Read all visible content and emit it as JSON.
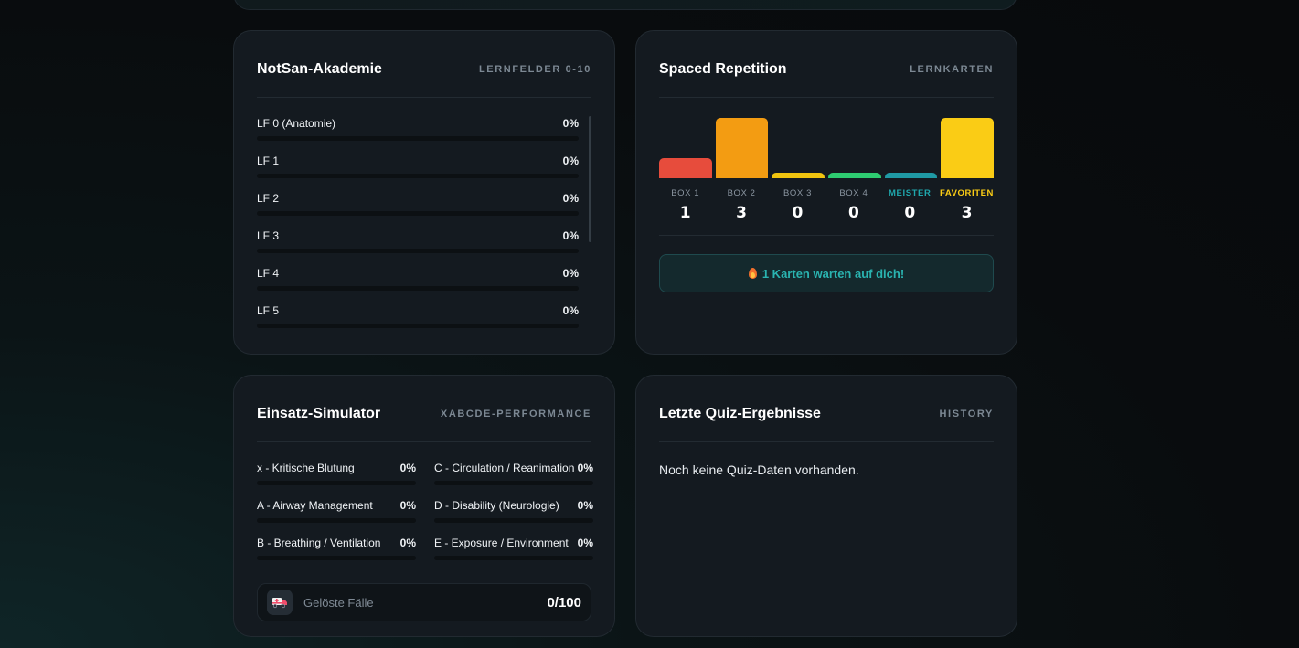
{
  "notsan": {
    "title": "NotSan-Akademie",
    "tag": "LERNFELDER 0-10",
    "items": [
      {
        "label": "LF 0 (Anatomie)",
        "pct": "0%",
        "progress": 0
      },
      {
        "label": "LF 1",
        "pct": "0%",
        "progress": 0
      },
      {
        "label": "LF 2",
        "pct": "0%",
        "progress": 0
      },
      {
        "label": "LF 3",
        "pct": "0%",
        "progress": 0
      },
      {
        "label": "LF 4",
        "pct": "0%",
        "progress": 0
      },
      {
        "label": "LF 5",
        "pct": "0%",
        "progress": 0
      }
    ]
  },
  "spaced": {
    "title": "Spaced Repetition",
    "tag": "LERNKARTEN",
    "boxes": [
      {
        "name": "BOX 1",
        "count": "1",
        "value": 1,
        "color": "#e74c3c"
      },
      {
        "name": "BOX 2",
        "count": "3",
        "value": 3,
        "color": "#f39c12"
      },
      {
        "name": "BOX 3",
        "count": "0",
        "value": 0,
        "color": "#f1c40f"
      },
      {
        "name": "BOX 4",
        "count": "0",
        "value": 0,
        "color": "#2ecc71"
      },
      {
        "name": "MEISTER",
        "count": "0",
        "value": 0,
        "color": "#1f9aa5",
        "label_color": "#1fa7ad"
      },
      {
        "name": "FAVORITEN",
        "count": "3",
        "value": 3,
        "color": "#facc15",
        "label_color": "#facc15"
      }
    ],
    "alert": "1 Karten warten auf dich!",
    "alert_icon": "flame-icon"
  },
  "simulator": {
    "title": "Einsatz-Simulator",
    "tag": "XABCDE-PERFORMANCE",
    "items": [
      {
        "label": "x - Kritische Blutung",
        "pct": "0%",
        "progress": 0
      },
      {
        "label": "C - Circulation / Reanimation",
        "pct": "0%",
        "progress": 0
      },
      {
        "label": "A - Airway Management",
        "pct": "0%",
        "progress": 0
      },
      {
        "label": "D - Disability (Neurologie)",
        "pct": "0%",
        "progress": 0
      },
      {
        "label": "B - Breathing / Ventilation",
        "pct": "0%",
        "progress": 0
      },
      {
        "label": "E - Exposure / Environment",
        "pct": "0%",
        "progress": 0
      }
    ],
    "solved_label": "Gelöste Fälle",
    "solved_value": "0/100",
    "solved_icon": "ambulance-icon"
  },
  "quiz": {
    "title": "Letzte Quiz-Ergebnisse",
    "tag": "HISTORY",
    "empty_text": "Noch keine Quiz-Daten vorhanden."
  }
}
